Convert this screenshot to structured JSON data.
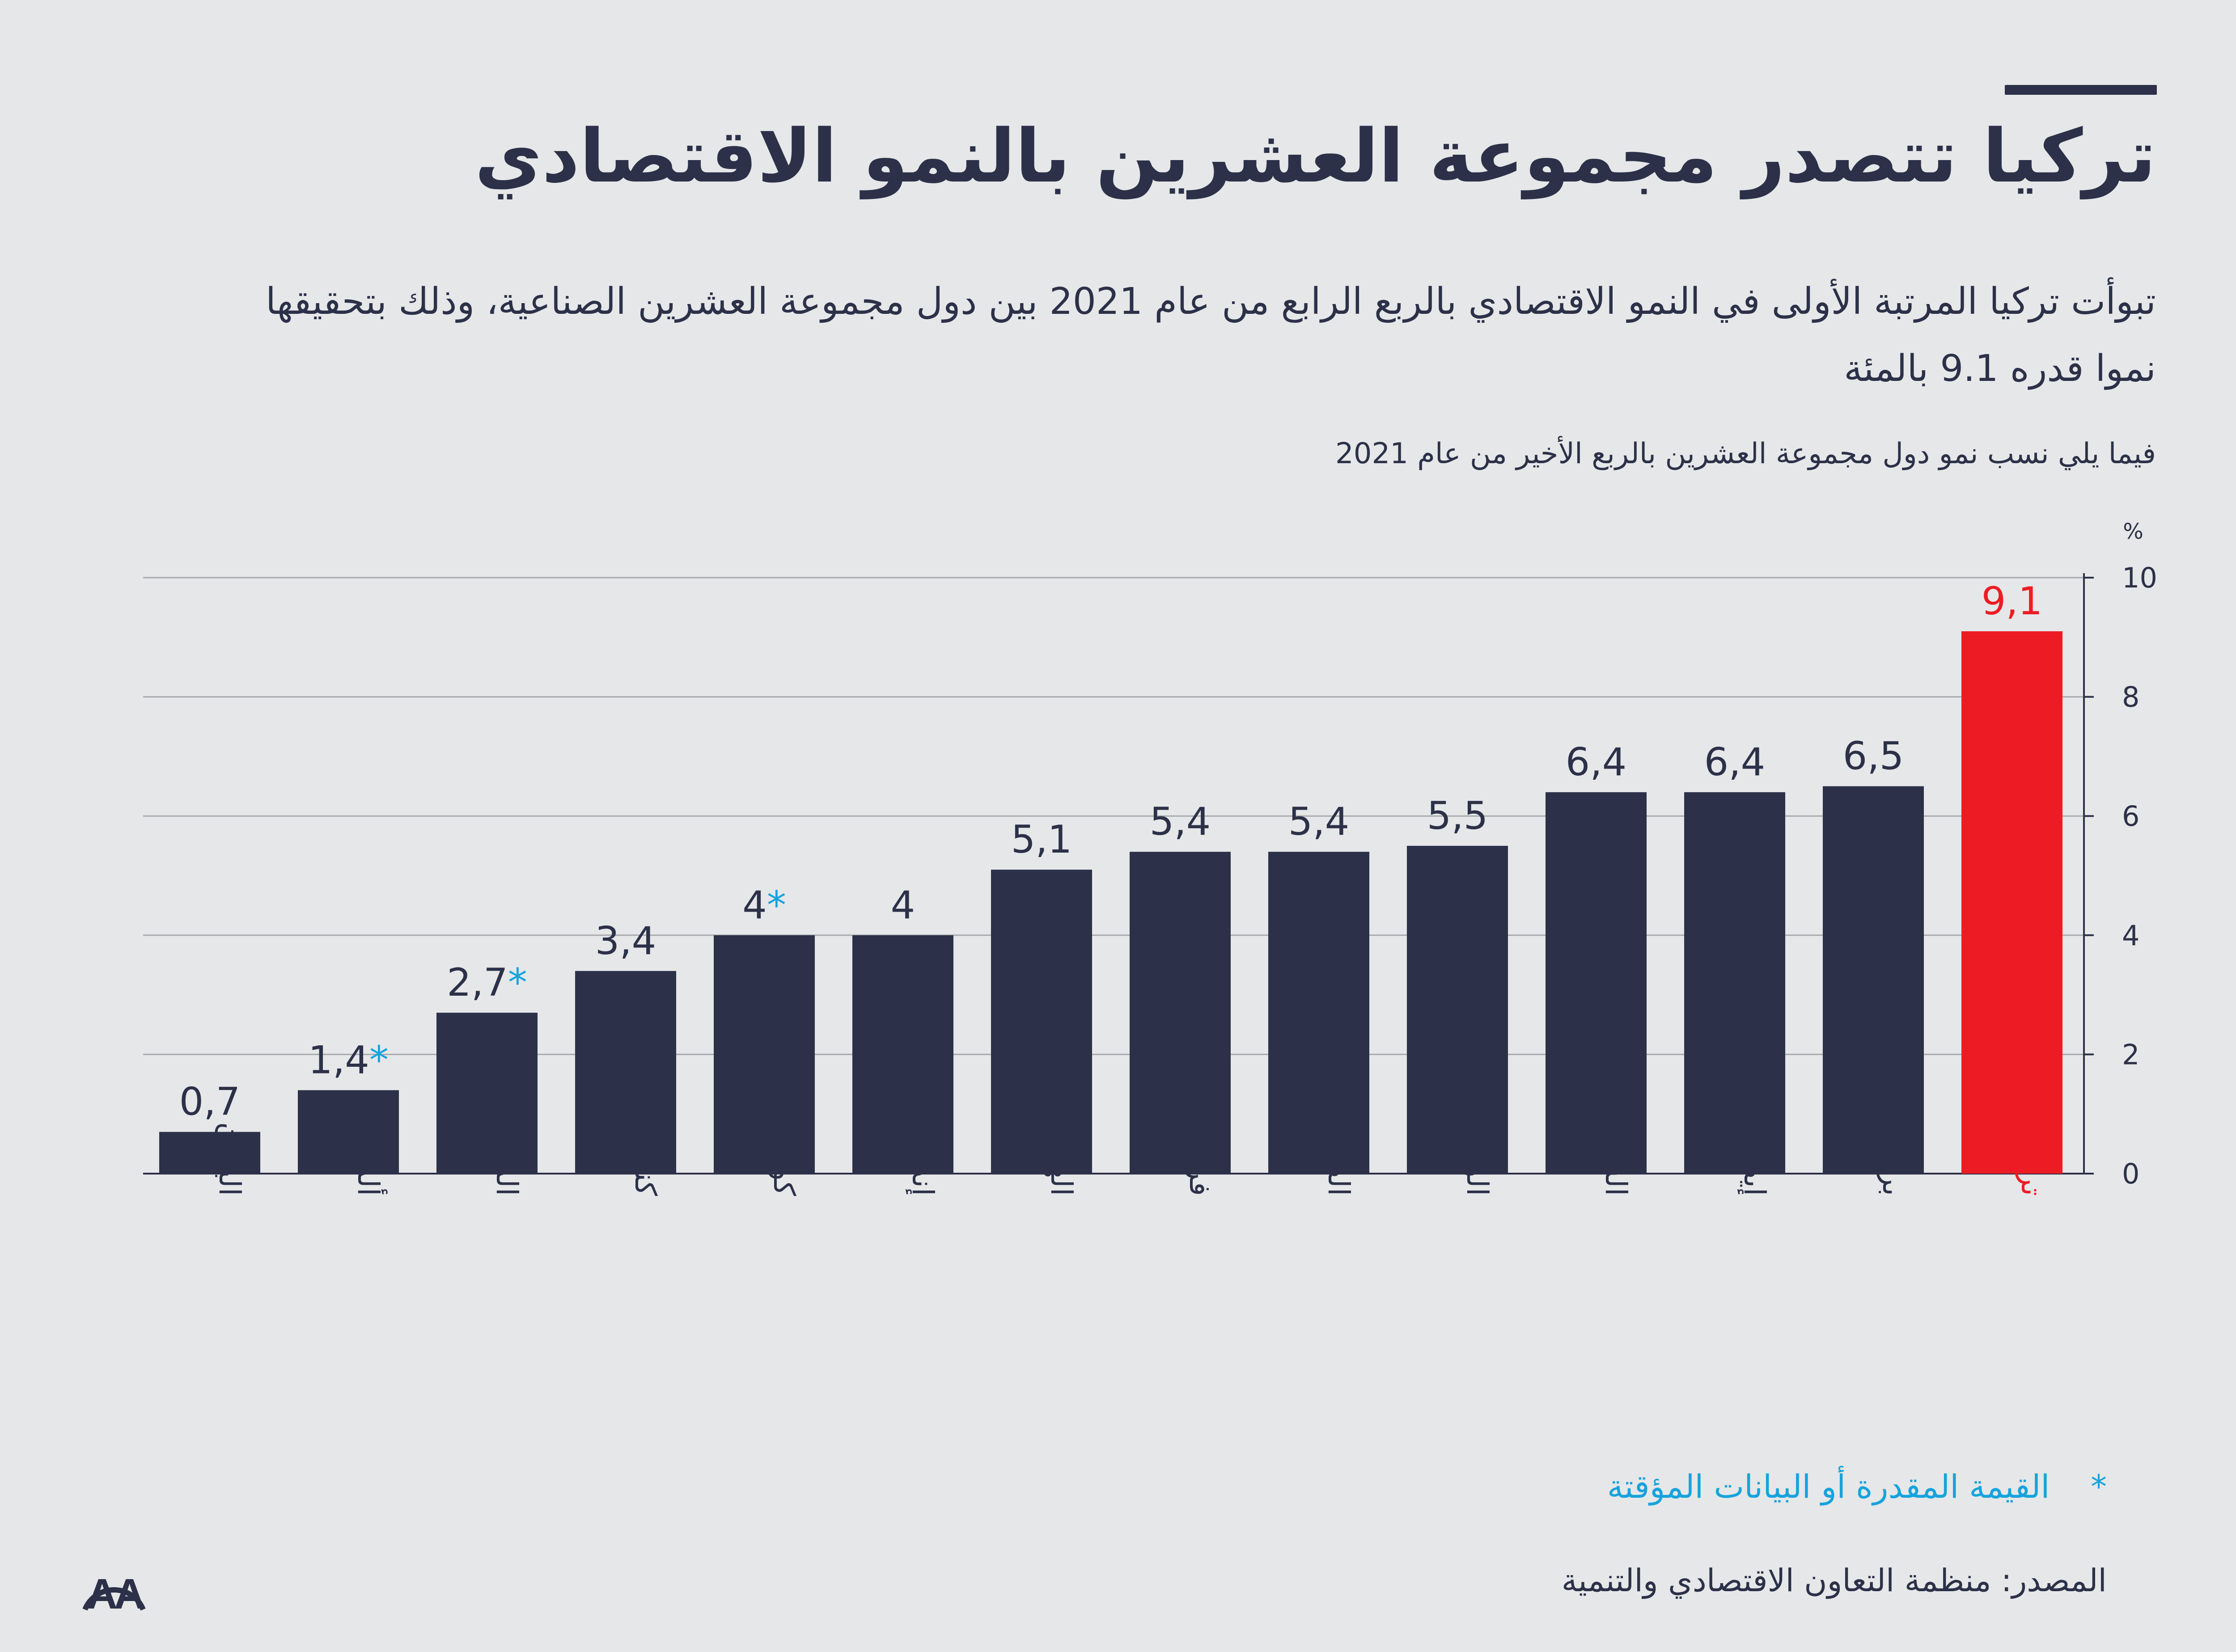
{
  "title": "تركيا تتصدر مجموعة العشرين بالنمو الاقتصادي",
  "subtitle": "تبوأت تركيا المرتبة الأولى في النمو الاقتصادي بالربع الرابع من عام 2021 بين دول مجموعة العشرين الصناعية، وذلك بتحقيقها نموا قدره 9.1 بالمئة",
  "note": "فيما يلي نسب نمو دول مجموعة العشرين بالربع الأخير من عام 2021",
  "legend": "القيمة المقدرة أو البيانات المؤقتة",
  "legend_marker": "*",
  "source": "المصدر: منظمة التعاون الاقتصادي والتنمية",
  "logo_text": "AA",
  "colors": {
    "background": "#e6e7e8",
    "bar": "#2c3149",
    "highlight": "#ed1c24",
    "asterisk": "#16a3dd",
    "grid": "#a7a9ac"
  },
  "chart_data": {
    "type": "bar",
    "unit_label": "%",
    "ylim": [
      0,
      10
    ],
    "yticks": [
      0,
      2,
      4,
      6,
      8,
      10
    ],
    "grid": true,
    "y_axis_side": "right",
    "categories": [
      "اليابان",
      "ألمانيا",
      "المكسيك",
      "كندا",
      "كوريا الجنوبية",
      "إندونيسيا",
      "الهند",
      "فرنسا",
      "الصين",
      "الولايات المتحدة",
      "السعودية",
      "إيطاليا",
      "بريطانيا",
      "تركيا"
    ],
    "values": [
      0.7,
      1.4,
      2.7,
      3.4,
      4,
      4,
      5.1,
      5.4,
      5.4,
      5.5,
      6.4,
      6.4,
      6.5,
      9.1
    ],
    "value_labels": [
      "0,7",
      "1,4",
      "2,7",
      "3,4",
      "4",
      "4",
      "5,1",
      "5,4",
      "5,4",
      "5,5",
      "6,4",
      "6,4",
      "6,5",
      "9,1"
    ],
    "estimated": [
      false,
      true,
      true,
      false,
      true,
      false,
      false,
      false,
      false,
      false,
      false,
      false,
      false,
      false
    ],
    "highlight": [
      false,
      false,
      false,
      false,
      false,
      false,
      false,
      false,
      false,
      false,
      false,
      false,
      false,
      true
    ]
  }
}
